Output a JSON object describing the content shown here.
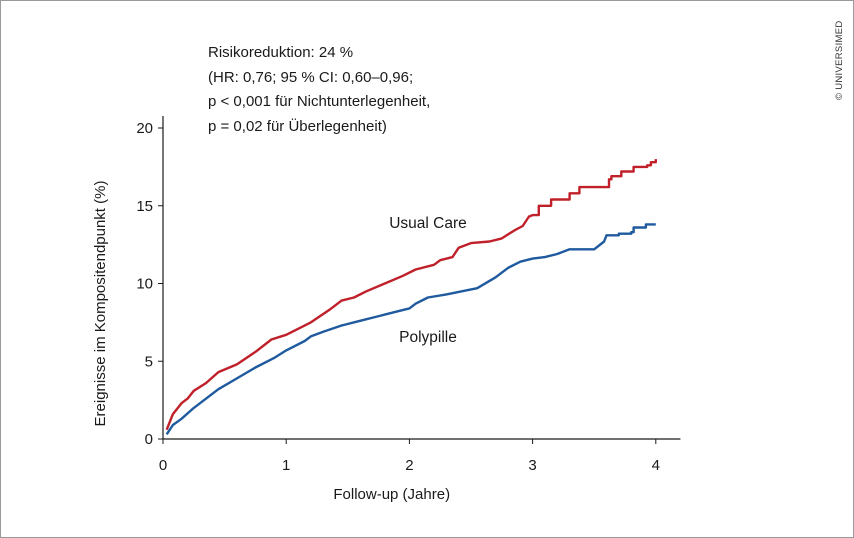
{
  "annotation": {
    "line1": "Risikoreduktion: 24 %",
    "line2": "(HR: 0,76; 95 % CI: 0,60–0,96;",
    "line3": "p < 0,001 für Nichtunterlegenheit,",
    "line4": "p = 0,02 für Überlegenheit)"
  },
  "credit": "© UNIVERSIMED",
  "chart_data": {
    "type": "line",
    "title": "",
    "xlabel": "Follow-up (Jahre)",
    "ylabel": "Ereignisse im Kompositendpunkt (%)",
    "xlim": [
      0,
      4.2
    ],
    "ylim": [
      0,
      20
    ],
    "xticks": [
      0,
      1,
      2,
      3,
      4
    ],
    "yticks": [
      0,
      5,
      10,
      15,
      20
    ],
    "grid": false,
    "colors": {
      "Usual Care": "#c0202a",
      "Polypille": "#1f5a9e"
    },
    "series": [
      {
        "name": "Usual Care",
        "label": "Usual Care",
        "step": false,
        "x": [
          0.03,
          0.08,
          0.15,
          0.2,
          0.25,
          0.35,
          0.45,
          0.6,
          0.75,
          0.88,
          1.0,
          1.2,
          1.35,
          1.45,
          1.55,
          1.65,
          1.8,
          1.95,
          2.05,
          2.2,
          2.25,
          2.35,
          2.4,
          2.5,
          2.65,
          2.75,
          2.85,
          2.92,
          2.97,
          3.0
        ],
        "y": [
          0.6,
          1.6,
          2.3,
          2.6,
          3.1,
          3.6,
          4.3,
          4.8,
          5.6,
          6.4,
          6.7,
          7.5,
          8.3,
          8.9,
          9.1,
          9.5,
          10.0,
          10.5,
          10.9,
          11.2,
          11.5,
          11.7,
          12.3,
          12.6,
          12.7,
          12.9,
          13.4,
          13.7,
          14.3,
          14.4
        ],
        "steps_x": [
          3.0,
          3.05,
          3.1,
          3.15,
          3.2,
          3.3,
          3.38,
          3.45,
          3.5,
          3.62,
          3.64,
          3.72,
          3.77,
          3.82,
          3.93,
          3.96,
          4.0
        ],
        "steps_y": [
          14.4,
          15.0,
          15.0,
          15.4,
          15.4,
          15.8,
          16.2,
          16.2,
          16.2,
          16.7,
          16.9,
          17.2,
          17.2,
          17.5,
          17.6,
          17.8,
          18.0
        ]
      },
      {
        "name": "Polypille",
        "label": "Polypille",
        "step": false,
        "x": [
          0.03,
          0.08,
          0.15,
          0.25,
          0.35,
          0.45,
          0.6,
          0.75,
          0.9,
          1.0,
          1.15,
          1.2,
          1.3,
          1.45,
          1.6,
          1.8,
          1.95,
          2.0,
          2.05,
          2.15,
          2.3,
          2.55,
          2.7,
          2.8,
          2.9,
          3.0,
          3.1,
          3.2,
          3.3,
          3.5,
          3.58,
          3.6
        ],
        "y": [
          0.3,
          0.9,
          1.3,
          2.0,
          2.6,
          3.2,
          3.9,
          4.6,
          5.2,
          5.7,
          6.3,
          6.6,
          6.9,
          7.3,
          7.6,
          8.0,
          8.3,
          8.4,
          8.7,
          9.1,
          9.3,
          9.7,
          10.4,
          11.0,
          11.4,
          11.6,
          11.7,
          11.9,
          12.2,
          12.2,
          12.7,
          13.1
        ],
        "steps_x": [
          3.6,
          3.7,
          3.8,
          3.82,
          3.85,
          3.88,
          3.92,
          4.0
        ],
        "steps_y": [
          13.1,
          13.2,
          13.3,
          13.6,
          13.6,
          13.6,
          13.8,
          13.8
        ]
      }
    ]
  }
}
